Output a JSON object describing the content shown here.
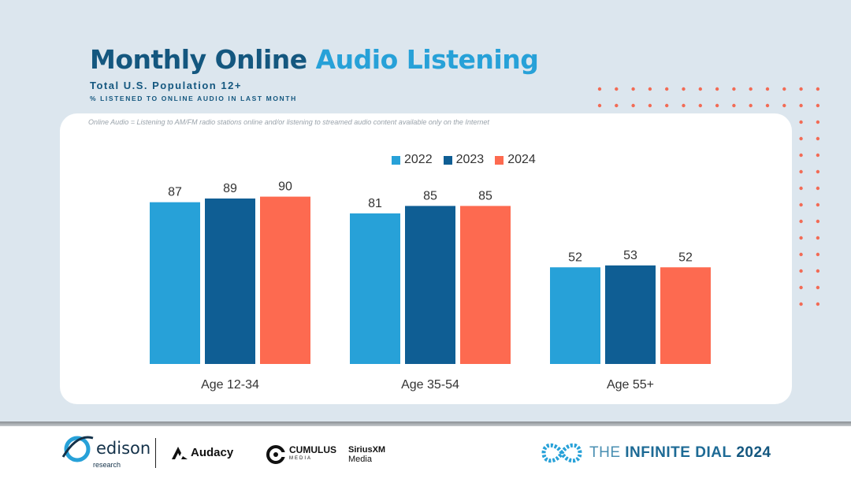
{
  "title": {
    "part1": "Monthly Online",
    "part2": "Audio Listening"
  },
  "subtitle": "Total U.S. Population 12+",
  "subtitle2": "% LISTENED TO ONLINE AUDIO IN LAST MONTH",
  "note": "Online Audio = Listening to AM/FM radio stations online and/or listening to streamed audio content available only on the Internet",
  "colors": {
    "y2022": "#27a1d8",
    "y2023": "#0f5e94",
    "y2024": "#fd6a50",
    "dots": "#f26b55"
  },
  "chart_data": {
    "type": "bar",
    "title": "Monthly Online Audio Listening",
    "categories": [
      "Age 12-34",
      "Age 35-54",
      "Age 55+"
    ],
    "series": [
      {
        "name": "2022",
        "values": [
          87,
          81,
          52
        ]
      },
      {
        "name": "2023",
        "values": [
          89,
          85,
          53
        ]
      },
      {
        "name": "2024",
        "values": [
          90,
          85,
          52
        ]
      }
    ],
    "ylim": [
      0,
      100
    ],
    "xlabel": "",
    "ylabel": "",
    "legend": "top-right"
  },
  "footer": {
    "edison": "edison",
    "edison_sub": "research",
    "audacy": "Audacy",
    "cumulus": "CUMULUS",
    "cumulus_sub": "MEDIA",
    "sirius_line1": "SiriusXM",
    "sirius_line2": "Media",
    "infinite_prefix": "THE",
    "infinite_main": "INFINITE DIAL",
    "infinite_year": "2024"
  }
}
